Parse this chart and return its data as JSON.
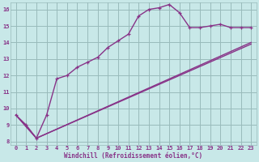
{
  "xlabel": "Windchill (Refroidissement éolien,°C)",
  "bg_color": "#c8e8e8",
  "grid_color": "#99bbbb",
  "line_color": "#883388",
  "xlim": [
    -0.5,
    23.5
  ],
  "ylim": [
    7.8,
    16.4
  ],
  "yticks": [
    8,
    9,
    10,
    11,
    12,
    13,
    14,
    15,
    16
  ],
  "xticks": [
    0,
    1,
    2,
    3,
    4,
    5,
    6,
    7,
    8,
    9,
    10,
    11,
    12,
    13,
    14,
    15,
    16,
    17,
    18,
    19,
    20,
    21,
    22,
    23
  ],
  "line1_x": [
    0,
    1,
    2,
    3,
    4,
    5,
    6,
    7,
    8,
    9,
    10,
    11,
    12,
    13,
    14,
    15,
    16,
    17,
    18,
    19,
    20,
    21,
    22,
    23
  ],
  "line1_y": [
    9.6,
    9.0,
    8.2,
    9.6,
    11.8,
    12.0,
    12.5,
    12.8,
    13.1,
    13.7,
    14.1,
    14.5,
    15.6,
    16.0,
    16.1,
    16.3,
    15.8,
    14.9,
    14.9,
    15.0,
    15.1,
    14.9,
    14.9,
    14.9
  ],
  "line2_x": [
    0,
    2,
    23
  ],
  "line2_y": [
    9.6,
    8.2,
    14.0
  ],
  "line3_x": [
    0,
    2,
    23
  ],
  "line3_y": [
    9.6,
    8.2,
    13.9
  ]
}
